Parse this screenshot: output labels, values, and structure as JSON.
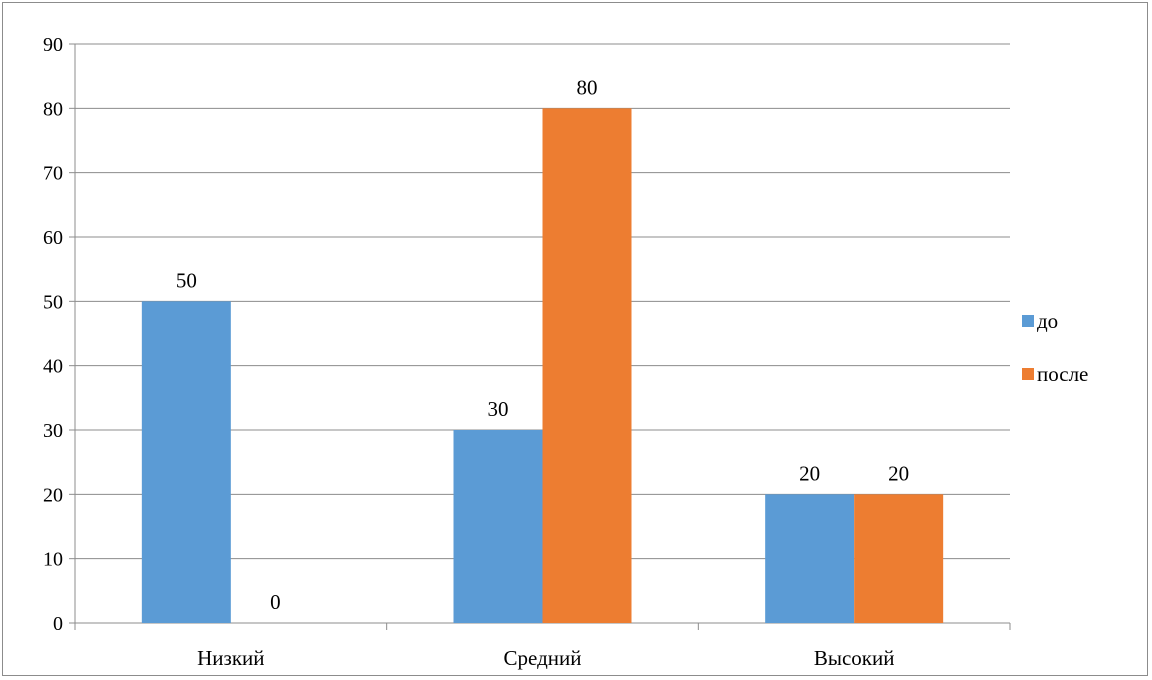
{
  "chart_data": {
    "type": "bar",
    "title": "",
    "xlabel": "",
    "ylabel": "",
    "categories": [
      "Низкий",
      "Средний",
      "Высокий"
    ],
    "series": [
      {
        "name": "до",
        "values": [
          50,
          30,
          20
        ],
        "color": "#5b9bd5"
      },
      {
        "name": "после",
        "values": [
          0,
          80,
          20
        ],
        "color": "#ed7d31"
      }
    ],
    "ylim": [
      0,
      90
    ],
    "yticks": [
      0,
      10,
      20,
      30,
      40,
      50,
      60,
      70,
      80,
      90
    ],
    "grid": true,
    "legend_position": "right"
  }
}
